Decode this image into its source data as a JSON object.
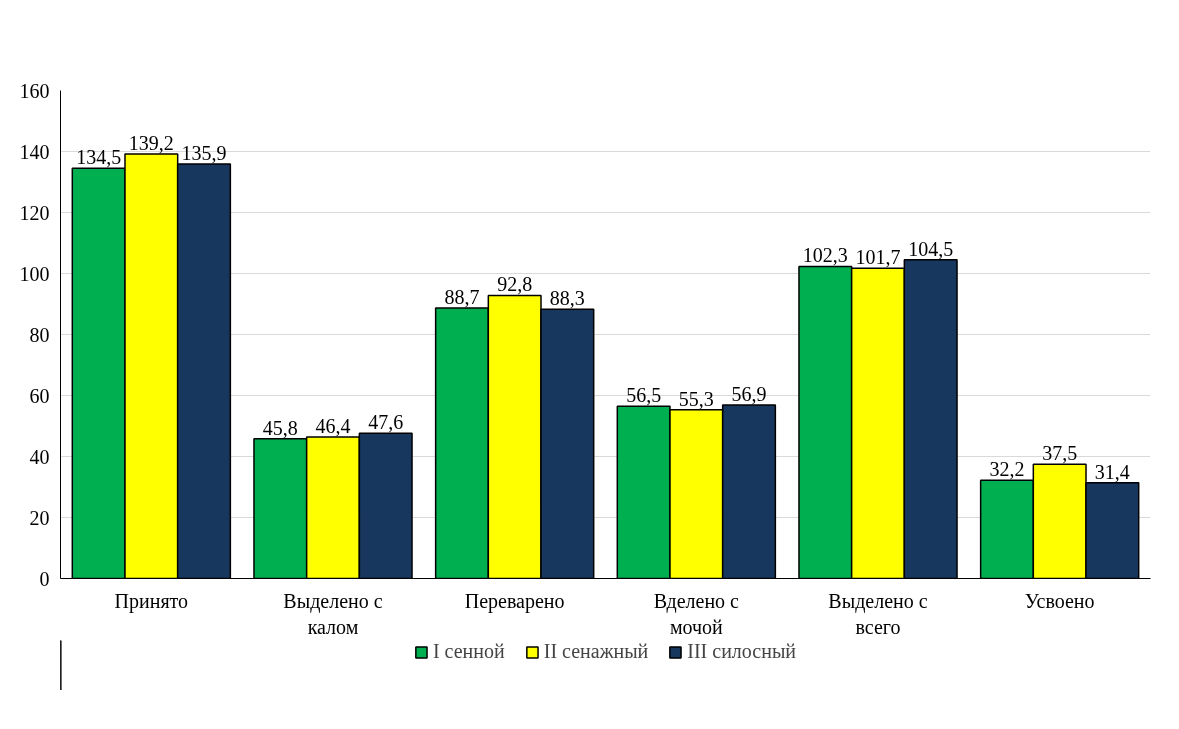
{
  "chart_data": {
    "type": "bar",
    "categories": [
      "Принято",
      "Выделено с калом",
      "Переварено",
      "Вделено с мочой",
      "Выделено с всего",
      "Усвоено"
    ],
    "series": [
      {
        "name": "I сенной",
        "color": "#00b050",
        "values": [
          134.5,
          45.8,
          88.7,
          56.5,
          102.3,
          32.2
        ],
        "value_labels": [
          "134,5",
          "45,8",
          "88,7",
          "56,5",
          "102,3",
          "32,2"
        ]
      },
      {
        "name": "II сенажный",
        "color": "#ffff00",
        "values": [
          139.2,
          46.4,
          92.8,
          55.3,
          101.7,
          37.5
        ],
        "value_labels": [
          "139,2",
          "46,4",
          "92,8",
          "55,3",
          "101,7",
          "37,5"
        ]
      },
      {
        "name": "III силосный",
        "color": "#17375e",
        "values": [
          135.9,
          47.6,
          88.3,
          56.9,
          104.5,
          31.4
        ],
        "value_labels": [
          "135,9",
          "47,6",
          "88,3",
          "56,9",
          "104,5",
          "31,4"
        ]
      }
    ],
    "ylim": [
      0,
      160
    ],
    "yticks": [
      0,
      20,
      40,
      60,
      80,
      100,
      120,
      140,
      160
    ],
    "grid": "y",
    "legend": "bottom"
  }
}
